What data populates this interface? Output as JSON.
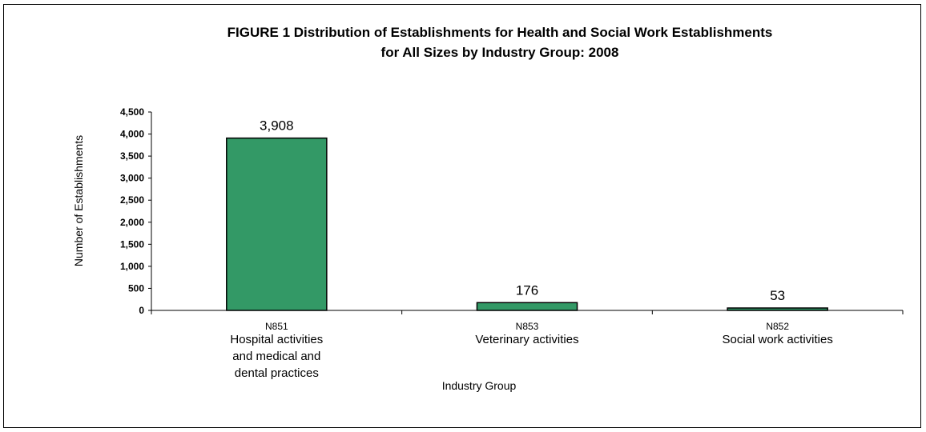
{
  "chart_data": {
    "type": "bar",
    "title_lines": [
      "FIGURE 1  Distribution of Establishments for Health and Social Work Establishments",
      "for All Sizes by Industry Group:  2008"
    ],
    "ylabel": "Number of Establishments",
    "xlabel": "Industry Group",
    "ylim": [
      0,
      4500
    ],
    "yticks": [
      "0",
      "500",
      "1,000",
      "1,500",
      "2,000",
      "2,500",
      "3,000",
      "3,500",
      "4,000",
      "4,500"
    ],
    "categories": [
      {
        "code": "N851",
        "name_lines": [
          "Hospital activities",
          "and medical and",
          "dental practices"
        ]
      },
      {
        "code": "N853",
        "name_lines": [
          "Veterinary activities"
        ]
      },
      {
        "code": "N852",
        "name_lines": [
          "Social work activities"
        ]
      }
    ],
    "values": [
      3908,
      176,
      53
    ],
    "data_labels": [
      "3,908",
      "176",
      "53"
    ],
    "bar_color": "#339966",
    "grid": false,
    "legend": "none"
  }
}
